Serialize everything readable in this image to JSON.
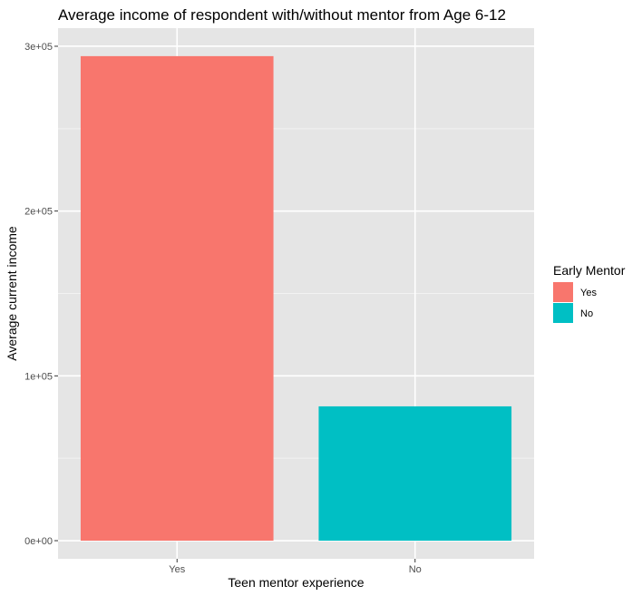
{
  "chart_data": {
    "type": "bar",
    "title": "Average income of respondent with/without mentor from Age 6-12",
    "xlabel": "Teen mentor experience",
    "ylabel": "Average current income",
    "categories": [
      "Yes",
      "No"
    ],
    "values": [
      294000,
      81500
    ],
    "bar_colors": [
      "#F8766D",
      "#00BFC4"
    ],
    "ylim": [
      -11000,
      311000
    ],
    "yticks": [
      0,
      100000,
      200000,
      300000
    ],
    "ytick_labels": [
      "0e+00",
      "1e+05",
      "2e+05",
      "3e+05"
    ],
    "grid": true,
    "legend": {
      "title": "Early Mentor",
      "position": "right",
      "items": [
        {
          "label": "Yes",
          "color": "#F8766D"
        },
        {
          "label": "No",
          "color": "#00BFC4"
        }
      ]
    },
    "colors": {
      "panel_background": "#E5E5E5",
      "grid_major": "#FFFFFF",
      "grid_minor": "#F2F2F2",
      "tick_text": "#4D4D4D",
      "tick_mark": "#333333"
    }
  }
}
